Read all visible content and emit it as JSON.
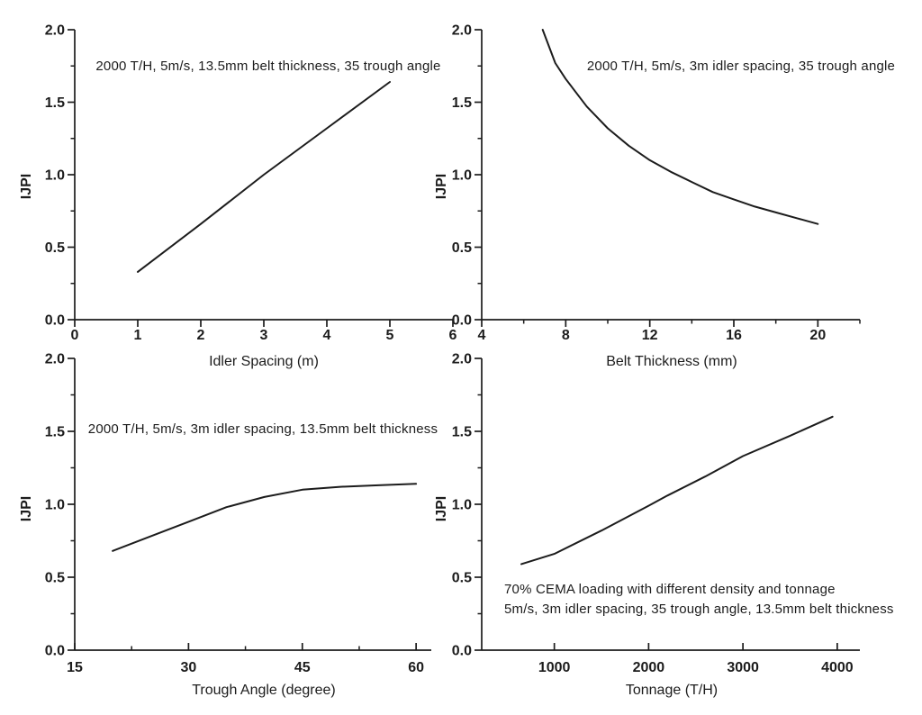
{
  "figure": {
    "description": "Four-panel IJPI parametric study line charts",
    "background_color": "#ffffff",
    "line_color": "#1c1c1c",
    "text_color": "#1c1c1c"
  },
  "chart_data": [
    {
      "id": "idler-spacing",
      "type": "line",
      "annotation": [
        "2000 T/H, 5m/s, 13.5mm belt thickness, 35 trough angle"
      ],
      "xlabel": "Idler Spacing (m)",
      "ylabel": "IJPI",
      "xlim": [
        0,
        6
      ],
      "ylim": [
        0,
        2
      ],
      "x_major_ticks": [
        0,
        1,
        2,
        3,
        4,
        5,
        6
      ],
      "x_major_labels": [
        "0",
        "1",
        "2",
        "3",
        "4",
        "5",
        "6"
      ],
      "x_minor_ticks": [],
      "y_major_ticks": [
        0,
        0.5,
        1,
        1.5,
        2
      ],
      "y_major_labels": [
        "0.0",
        "0.5",
        "1.0",
        "1.5",
        "2.0"
      ],
      "y_minor_ticks": [
        0.25,
        0.75,
        1.25,
        1.75
      ],
      "grid": false,
      "legend": false,
      "series": [
        {
          "name": "IJPI vs idler spacing",
          "x": [
            1,
            2,
            3,
            4,
            5
          ],
          "y": [
            0.33,
            0.66,
            1.0,
            1.32,
            1.64
          ]
        }
      ]
    },
    {
      "id": "belt-thickness",
      "type": "line",
      "annotation": [
        "2000 T/H, 5m/s, 3m idler spacing, 35 trough angle"
      ],
      "xlabel": "Belt Thickness (mm)",
      "ylabel": "IJPI",
      "xlim": [
        4,
        22
      ],
      "ylim": [
        0,
        2
      ],
      "x_major_ticks": [
        4,
        8,
        12,
        16,
        20
      ],
      "x_major_labels": [
        "4",
        "8",
        "12",
        "16",
        "20"
      ],
      "x_minor_ticks": [
        6,
        10,
        14,
        18,
        22
      ],
      "y_major_ticks": [
        0,
        0.5,
        1,
        1.5,
        2
      ],
      "y_major_labels": [
        "0.0",
        "0.5",
        "1.0",
        "1.5",
        "2.0"
      ],
      "y_minor_ticks": [
        0.25,
        0.75,
        1.25,
        1.75
      ],
      "grid": false,
      "legend": false,
      "series": [
        {
          "name": "IJPI vs belt thickness",
          "x": [
            6.9,
            7.5,
            8,
            9,
            10,
            11,
            12,
            13,
            14,
            15,
            16,
            17,
            18,
            19,
            20
          ],
          "y": [
            2.0,
            1.77,
            1.66,
            1.47,
            1.32,
            1.2,
            1.1,
            1.02,
            0.95,
            0.88,
            0.83,
            0.78,
            0.74,
            0.7,
            0.66
          ]
        }
      ]
    },
    {
      "id": "trough-angle",
      "type": "line",
      "annotation": [
        "2000 T/H, 5m/s, 3m idler spacing, 13.5mm belt thickness"
      ],
      "xlabel": "Trough Angle (degree)",
      "ylabel": "IJPI",
      "xlim": [
        15,
        62
      ],
      "ylim": [
        0,
        2
      ],
      "x_major_ticks": [
        15,
        30,
        45,
        60
      ],
      "x_major_labels": [
        "15",
        "30",
        "45",
        "60"
      ],
      "x_minor_ticks": [
        22.5,
        37.5,
        52.5
      ],
      "y_major_ticks": [
        0,
        0.5,
        1,
        1.5,
        2
      ],
      "y_major_labels": [
        "0.0",
        "0.5",
        "1.0",
        "1.5",
        "2.0"
      ],
      "y_minor_ticks": [
        0.25,
        0.75,
        1.25,
        1.75
      ],
      "grid": false,
      "legend": false,
      "series": [
        {
          "name": "IJPI vs trough angle",
          "x": [
            20,
            25,
            30,
            35,
            40,
            45,
            50,
            55,
            60
          ],
          "y": [
            0.68,
            0.78,
            0.88,
            0.98,
            1.05,
            1.1,
            1.12,
            1.13,
            1.14
          ]
        }
      ]
    },
    {
      "id": "tonnage",
      "type": "line",
      "annotation": [
        "70% CEMA loading with different density and tonnage",
        "5m/s, 3m idler spacing, 35 trough angle, 13.5mm belt thickness"
      ],
      "xlabel": "Tonnage (T/H)",
      "ylabel": "IJPI",
      "xlim": [
        230,
        4240
      ],
      "ylim": [
        0,
        2
      ],
      "x_major_ticks": [
        1000,
        2000,
        3000,
        4000
      ],
      "x_major_labels": [
        "1000",
        "2000",
        "3000",
        "4000"
      ],
      "x_minor_ticks": [],
      "y_major_ticks": [
        0,
        0.5,
        1,
        1.5,
        2
      ],
      "y_major_labels": [
        "0.0",
        "0.5",
        "1.0",
        "1.5",
        "2.0"
      ],
      "y_minor_ticks": [
        0.25,
        0.75,
        1.25,
        1.75
      ],
      "grid": false,
      "legend": false,
      "series": [
        {
          "name": "IJPI vs tonnage",
          "x": [
            650,
            1000,
            1500,
            2000,
            2200,
            2600,
            3000,
            3500,
            3950
          ],
          "y": [
            0.59,
            0.66,
            0.82,
            0.99,
            1.06,
            1.19,
            1.33,
            1.47,
            1.6
          ]
        }
      ]
    }
  ]
}
